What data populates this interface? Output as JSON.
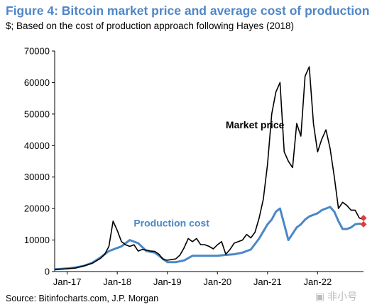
{
  "figure": {
    "title": "Figure 4: Bitcoin market price and average cost of production",
    "subtitle": "$; Based on the cost of production approach following Hayes (2018)",
    "source": "Source: Bitinfocharts.com, J.P. Morgan",
    "watermark": "▣ 非小号"
  },
  "chart_data": {
    "type": "line",
    "title": "Figure 4: Bitcoin market price and average cost of production",
    "xlabel": "",
    "ylabel": "",
    "x_ticks": [
      "Jan-17",
      "Jan-18",
      "Jan-19",
      "Jan-20",
      "Jan-21",
      "Jan-22"
    ],
    "y_ticks": [
      0,
      10000,
      20000,
      30000,
      40000,
      50000,
      60000,
      70000
    ],
    "ylim": [
      0,
      70000
    ],
    "xlim": [
      "2016-10",
      "2022-12"
    ],
    "grid": false,
    "legend": "none",
    "series": [
      {
        "name": "Market price",
        "color": "#000000",
        "x": [
          "2016-10",
          "2017-01",
          "2017-03",
          "2017-05",
          "2017-07",
          "2017-09",
          "2017-10",
          "2017-11",
          "2017-12",
          "2018-01",
          "2018-02",
          "2018-03",
          "2018-04",
          "2018-05",
          "2018-06",
          "2018-07",
          "2018-08",
          "2018-09",
          "2018-10",
          "2018-11",
          "2018-12",
          "2019-01",
          "2019-02",
          "2019-03",
          "2019-04",
          "2019-05",
          "2019-06",
          "2019-07",
          "2019-08",
          "2019-09",
          "2019-10",
          "2019-11",
          "2019-12",
          "2020-01",
          "2020-02",
          "2020-03",
          "2020-04",
          "2020-05",
          "2020-06",
          "2020-07",
          "2020-08",
          "2020-09",
          "2020-10",
          "2020-11",
          "2020-12",
          "2021-01",
          "2021-02",
          "2021-03",
          "2021-04",
          "2021-05",
          "2021-06",
          "2021-07",
          "2021-08",
          "2021-09",
          "2021-10",
          "2021-11",
          "2021-12",
          "2022-01",
          "2022-02",
          "2022-03",
          "2022-04",
          "2022-05",
          "2022-06",
          "2022-07",
          "2022-08",
          "2022-09",
          "2022-10",
          "2022-11",
          "2022-12"
        ],
        "values": [
          650,
          900,
          1100,
          1800,
          2600,
          4200,
          5500,
          8000,
          16000,
          13000,
          9500,
          8500,
          8000,
          8500,
          6500,
          7000,
          6800,
          6500,
          6400,
          5500,
          3800,
          3600,
          3800,
          4000,
          5200,
          7500,
          10500,
          9500,
          10500,
          8500,
          8500,
          8000,
          7200,
          8500,
          9500,
          5500,
          7000,
          9000,
          9500,
          10000,
          11800,
          10700,
          12500,
          17000,
          23000,
          34000,
          50000,
          57000,
          60000,
          38000,
          35000,
          33000,
          47000,
          43000,
          62000,
          65000,
          47000,
          38000,
          42000,
          45000,
          39000,
          30000,
          20000,
          22000,
          21000,
          19500,
          19500,
          17000,
          16500
        ]
      },
      {
        "name": "Production cost",
        "color": "#4a87c6",
        "x": [
          "2016-10",
          "2017-01",
          "2017-03",
          "2017-05",
          "2017-07",
          "2017-09",
          "2017-11",
          "2018-01",
          "2018-02",
          "2018-04",
          "2018-06",
          "2018-08",
          "2018-10",
          "2018-12",
          "2019-01",
          "2019-03",
          "2019-05",
          "2019-07",
          "2019-09",
          "2019-11",
          "2020-01",
          "2020-03",
          "2020-05",
          "2020-07",
          "2020-09",
          "2020-11",
          "2021-01",
          "2021-02",
          "2021-03",
          "2021-04",
          "2021-05",
          "2021-06",
          "2021-07",
          "2021-08",
          "2021-09",
          "2021-10",
          "2021-11",
          "2021-12",
          "2022-01",
          "2022-02",
          "2022-03",
          "2022-04",
          "2022-05",
          "2022-06",
          "2022-07",
          "2022-08",
          "2022-09",
          "2022-10",
          "2022-11",
          "2022-12"
        ],
        "values": [
          700,
          1000,
          1300,
          1800,
          2800,
          4500,
          6500,
          7500,
          8000,
          10000,
          9000,
          6500,
          6000,
          4000,
          3000,
          3000,
          3500,
          5000,
          5000,
          5000,
          5000,
          5300,
          5500,
          6000,
          7000,
          10500,
          15000,
          16500,
          19000,
          20000,
          15000,
          10000,
          12000,
          14000,
          15000,
          16500,
          17500,
          18000,
          18500,
          19500,
          20000,
          20500,
          19000,
          16000,
          13500,
          13500,
          14000,
          15000,
          15200,
          15000
        ]
      }
    ],
    "annotations": [
      {
        "text": "Market price",
        "color": "#000000",
        "x": "2020-10",
        "y": 45500
      },
      {
        "text": "Production cost",
        "color": "#4a87c6",
        "x": "2019-02",
        "y": 14300
      }
    ],
    "markers": [
      {
        "color": "#e03c3c",
        "x": "2022-12",
        "y": 17000
      },
      {
        "color": "#e03c3c",
        "x": "2022-12",
        "y": 15000
      }
    ]
  }
}
